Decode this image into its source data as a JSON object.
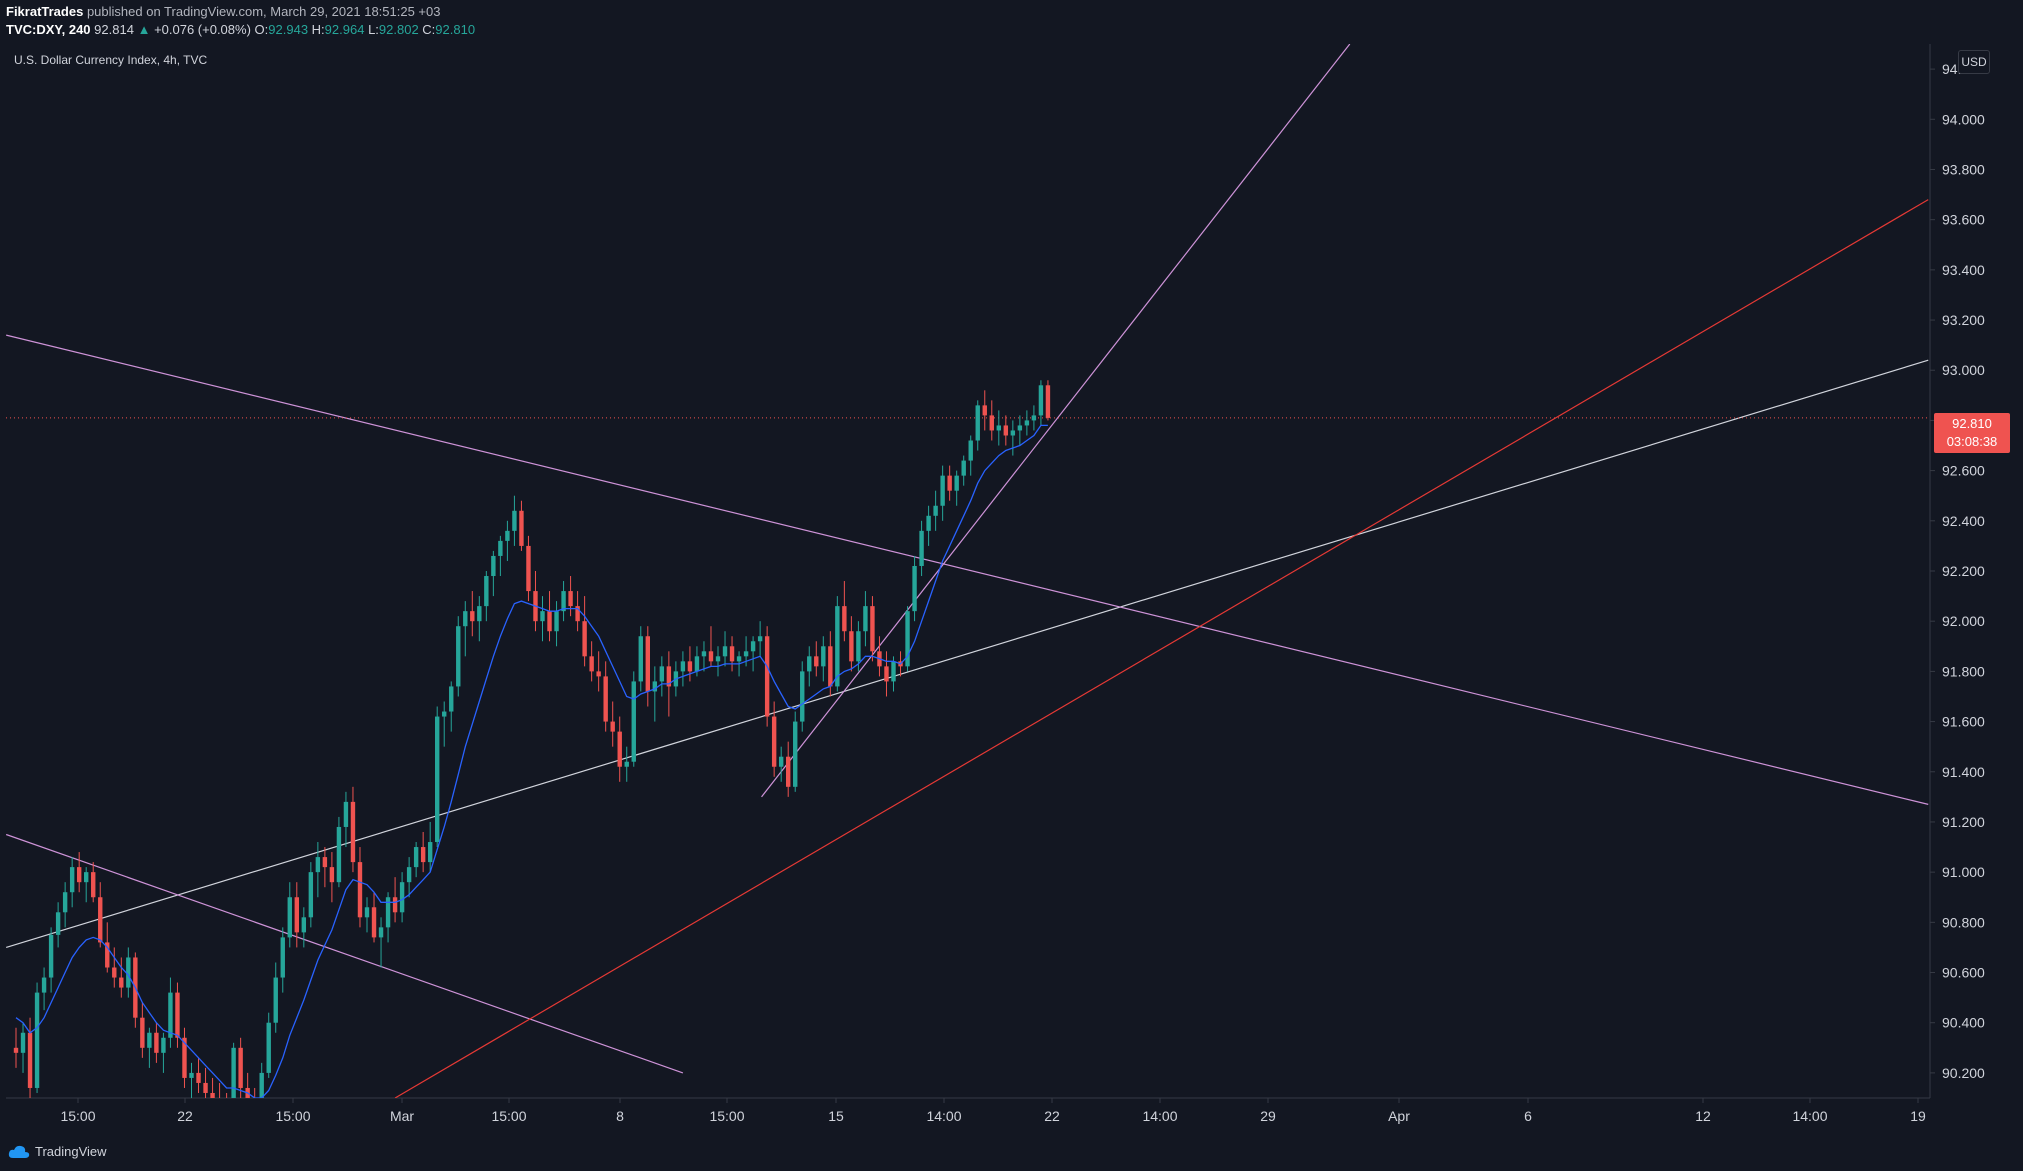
{
  "header": {
    "author": "FikratTrades",
    "published_text": "published on TradingView.com, March 29, 2021 18:51:25 +03",
    "symbol": "TVC:DXY, 240",
    "last": "92.814",
    "change_arrow": "▲",
    "change": "+0.076 (+0.08%)",
    "o_label": "O:",
    "o_value": "92.943",
    "h_label": "H:",
    "h_value": "92.964",
    "l_label": "L:",
    "l_value": "92.802",
    "c_label": "C:",
    "c_value": "92.810"
  },
  "chart_title": "U.S. Dollar Currency Index, 4h, TVC",
  "currency": "USD",
  "price_label": {
    "price": "92.810",
    "countdown": "03:08:38"
  },
  "footer": {
    "brand": "TradingView"
  },
  "colors": {
    "background": "#131722",
    "up": "#26a69a",
    "down": "#ef5350",
    "ma": "#2962ff",
    "trend_purple": "#ce93d8",
    "trend_red": "#e53935",
    "trend_white": "#d1d4dc"
  },
  "chart_data": {
    "type": "candlestick",
    "title": "U.S. Dollar Currency Index, 4h, TVC",
    "ylim": [
      90.1,
      94.3
    ],
    "y_ticks": [
      "90.200",
      "90.400",
      "90.600",
      "90.800",
      "91.000",
      "91.200",
      "91.400",
      "91.600",
      "91.800",
      "92.000",
      "92.200",
      "92.400",
      "92.600",
      "92.800",
      "93.000",
      "93.200",
      "93.400",
      "93.600",
      "93.800",
      "94.000",
      "94.200"
    ],
    "x_ticks": [
      "15:00",
      "22",
      "15:00",
      "Mar",
      "15:00",
      "8",
      "15:00",
      "15",
      "14:00",
      "22",
      "14:00",
      "29",
      "Apr",
      "6",
      "12",
      "14:00",
      "19"
    ],
    "candles": [
      [
        90.3,
        90.38,
        90.22,
        90.28
      ],
      [
        90.28,
        90.4,
        90.2,
        90.36
      ],
      [
        90.36,
        90.42,
        90.1,
        90.14
      ],
      [
        90.14,
        90.56,
        90.12,
        90.52
      ],
      [
        90.52,
        90.62,
        90.45,
        90.58
      ],
      [
        90.58,
        90.78,
        90.52,
        90.75
      ],
      [
        90.75,
        90.88,
        90.7,
        90.84
      ],
      [
        90.84,
        90.96,
        90.78,
        90.92
      ],
      [
        90.92,
        91.06,
        90.86,
        91.02
      ],
      [
        91.02,
        91.08,
        90.92,
        90.96
      ],
      [
        90.96,
        91.02,
        90.88,
        91.0
      ],
      [
        91.0,
        91.04,
        90.88,
        90.9
      ],
      [
        90.9,
        90.96,
        90.7,
        90.72
      ],
      [
        90.72,
        90.8,
        90.6,
        90.62
      ],
      [
        90.62,
        90.7,
        90.54,
        90.58
      ],
      [
        90.58,
        90.66,
        90.5,
        90.54
      ],
      [
        90.54,
        90.7,
        90.5,
        90.66
      ],
      [
        90.66,
        90.68,
        90.38,
        90.42
      ],
      [
        90.42,
        90.48,
        90.26,
        90.3
      ],
      [
        90.3,
        90.38,
        90.22,
        90.36
      ],
      [
        90.36,
        90.4,
        90.24,
        90.28
      ],
      [
        90.28,
        90.36,
        90.2,
        90.34
      ],
      [
        90.34,
        90.58,
        90.3,
        90.52
      ],
      [
        90.52,
        90.56,
        90.3,
        90.34
      ],
      [
        90.34,
        90.38,
        90.14,
        90.18
      ],
      [
        90.18,
        90.24,
        90.08,
        90.2
      ],
      [
        90.2,
        90.26,
        90.12,
        90.16
      ],
      [
        90.16,
        90.22,
        90.08,
        90.12
      ],
      [
        90.12,
        90.18,
        90.04,
        90.1
      ],
      [
        90.1,
        90.16,
        90.02,
        90.06
      ],
      [
        90.06,
        90.12,
        89.98,
        90.04
      ],
      [
        90.04,
        90.32,
        90.0,
        90.3
      ],
      [
        90.3,
        90.34,
        90.1,
        90.14
      ],
      [
        90.14,
        90.2,
        90.04,
        90.08
      ],
      [
        90.08,
        90.14,
        89.98,
        90.02
      ],
      [
        90.02,
        90.24,
        90.0,
        90.2
      ],
      [
        90.2,
        90.44,
        90.18,
        90.4
      ],
      [
        90.4,
        90.64,
        90.36,
        90.58
      ],
      [
        90.58,
        90.78,
        90.52,
        90.74
      ],
      [
        90.74,
        90.96,
        90.7,
        90.9
      ],
      [
        90.9,
        90.96,
        90.7,
        90.76
      ],
      [
        90.76,
        90.86,
        90.7,
        90.82
      ],
      [
        90.82,
        91.04,
        90.78,
        91.0
      ],
      [
        91.0,
        91.12,
        90.9,
        91.06
      ],
      [
        91.06,
        91.1,
        90.94,
        91.02
      ],
      [
        91.02,
        91.08,
        90.88,
        90.96
      ],
      [
        90.96,
        91.22,
        90.94,
        91.18
      ],
      [
        91.18,
        91.32,
        91.1,
        91.28
      ],
      [
        91.28,
        91.34,
        91.0,
        91.04
      ],
      [
        91.04,
        91.1,
        90.78,
        90.82
      ],
      [
        90.82,
        90.9,
        90.76,
        90.86
      ],
      [
        90.86,
        90.92,
        90.72,
        90.74
      ],
      [
        90.74,
        90.82,
        90.62,
        90.78
      ],
      [
        90.78,
        90.92,
        90.72,
        90.9
      ],
      [
        90.9,
        90.98,
        90.8,
        90.84
      ],
      [
        90.84,
        91.0,
        90.8,
        90.96
      ],
      [
        90.96,
        91.06,
        90.9,
        91.02
      ],
      [
        91.02,
        91.12,
        90.98,
        91.1
      ],
      [
        91.1,
        91.16,
        91.0,
        91.04
      ],
      [
        91.04,
        91.2,
        91.0,
        91.12
      ],
      [
        91.12,
        91.66,
        91.1,
        91.62
      ],
      [
        91.62,
        91.68,
        91.5,
        91.64
      ],
      [
        91.64,
        91.76,
        91.56,
        91.74
      ],
      [
        91.74,
        92.02,
        91.7,
        91.98
      ],
      [
        91.98,
        92.08,
        91.86,
        92.04
      ],
      [
        92.04,
        92.12,
        91.94,
        92.0
      ],
      [
        92.0,
        92.1,
        91.92,
        92.06
      ],
      [
        92.06,
        92.2,
        92.0,
        92.18
      ],
      [
        92.18,
        92.28,
        92.1,
        92.26
      ],
      [
        92.26,
        92.34,
        92.18,
        92.32
      ],
      [
        92.32,
        92.4,
        92.24,
        92.36
      ],
      [
        92.36,
        92.5,
        92.3,
        92.44
      ],
      [
        92.44,
        92.48,
        92.28,
        92.3
      ],
      [
        92.3,
        92.34,
        92.08,
        92.12
      ],
      [
        92.12,
        92.2,
        91.96,
        92.0
      ],
      [
        92.0,
        92.1,
        91.92,
        92.04
      ],
      [
        92.04,
        92.12,
        91.92,
        91.96
      ],
      [
        91.96,
        92.08,
        91.9,
        92.04
      ],
      [
        92.04,
        92.16,
        92.0,
        92.12
      ],
      [
        92.12,
        92.18,
        92.02,
        92.06
      ],
      [
        92.06,
        92.12,
        91.96,
        92.0
      ],
      [
        92.0,
        92.1,
        91.82,
        91.86
      ],
      [
        91.86,
        91.92,
        91.76,
        91.8
      ],
      [
        91.8,
        91.88,
        91.72,
        91.78
      ],
      [
        91.78,
        91.84,
        91.56,
        91.6
      ],
      [
        91.6,
        91.68,
        91.5,
        91.56
      ],
      [
        91.56,
        91.62,
        91.36,
        91.42
      ],
      [
        91.42,
        91.5,
        91.36,
        91.44
      ],
      [
        91.44,
        91.8,
        91.42,
        91.76
      ],
      [
        91.76,
        91.98,
        91.72,
        91.94
      ],
      [
        91.94,
        91.98,
        91.66,
        91.72
      ],
      [
        91.72,
        91.82,
        91.6,
        91.76
      ],
      [
        91.76,
        91.86,
        91.7,
        91.82
      ],
      [
        91.82,
        91.88,
        91.62,
        91.74
      ],
      [
        91.74,
        91.84,
        91.7,
        91.8
      ],
      [
        91.8,
        91.88,
        91.74,
        91.84
      ],
      [
        91.84,
        91.9,
        91.76,
        91.8
      ],
      [
        91.8,
        91.9,
        91.78,
        91.86
      ],
      [
        91.86,
        91.92,
        91.8,
        91.88
      ],
      [
        91.88,
        91.98,
        91.82,
        91.84
      ],
      [
        91.84,
        91.9,
        91.78,
        91.86
      ],
      [
        91.86,
        91.96,
        91.82,
        91.9
      ],
      [
        91.9,
        91.94,
        91.8,
        91.84
      ],
      [
        91.84,
        91.88,
        91.78,
        91.86
      ],
      [
        91.86,
        91.94,
        91.82,
        91.88
      ],
      [
        91.88,
        91.94,
        91.8,
        91.92
      ],
      [
        91.92,
        92.0,
        91.86,
        91.94
      ],
      [
        91.94,
        91.98,
        91.58,
        91.62
      ],
      [
        91.62,
        91.68,
        91.38,
        91.42
      ],
      [
        91.42,
        91.5,
        91.36,
        91.46
      ],
      [
        91.46,
        91.52,
        91.3,
        91.34
      ],
      [
        91.34,
        91.64,
        91.32,
        91.6
      ],
      [
        91.6,
        91.84,
        91.56,
        91.8
      ],
      [
        91.8,
        91.9,
        91.74,
        91.86
      ],
      [
        91.86,
        91.92,
        91.78,
        91.82
      ],
      [
        91.82,
        91.94,
        91.76,
        91.9
      ],
      [
        91.9,
        91.96,
        91.7,
        91.74
      ],
      [
        91.74,
        92.1,
        91.72,
        92.06
      ],
      [
        92.06,
        92.16,
        91.92,
        91.96
      ],
      [
        91.96,
        92.02,
        91.8,
        91.84
      ],
      [
        91.84,
        92.0,
        91.8,
        91.96
      ],
      [
        91.96,
        92.12,
        91.9,
        92.06
      ],
      [
        92.06,
        92.1,
        91.84,
        91.88
      ],
      [
        91.88,
        91.94,
        91.78,
        91.82
      ],
      [
        91.82,
        91.88,
        91.7,
        91.76
      ],
      [
        91.76,
        91.86,
        91.72,
        91.84
      ],
      [
        91.84,
        91.88,
        91.78,
        91.82
      ],
      [
        91.82,
        92.06,
        91.8,
        92.04
      ],
      [
        92.04,
        92.26,
        92.0,
        92.22
      ],
      [
        92.22,
        92.4,
        92.18,
        92.36
      ],
      [
        92.36,
        92.46,
        92.3,
        92.42
      ],
      [
        92.42,
        92.52,
        92.36,
        92.46
      ],
      [
        92.46,
        92.62,
        92.4,
        92.58
      ],
      [
        92.58,
        92.62,
        92.48,
        92.52
      ],
      [
        92.52,
        92.6,
        92.46,
        92.58
      ],
      [
        92.58,
        92.66,
        92.54,
        92.64
      ],
      [
        92.64,
        92.74,
        92.58,
        92.72
      ],
      [
        92.72,
        92.88,
        92.68,
        92.86
      ],
      [
        92.86,
        92.92,
        92.76,
        92.82
      ],
      [
        92.82,
        92.88,
        92.72,
        92.76
      ],
      [
        92.76,
        92.84,
        92.7,
        92.78
      ],
      [
        92.78,
        92.82,
        92.7,
        92.74
      ],
      [
        92.74,
        92.8,
        92.66,
        92.76
      ],
      [
        92.76,
        92.82,
        92.7,
        92.78
      ],
      [
        92.78,
        92.84,
        92.74,
        92.8
      ],
      [
        92.8,
        92.86,
        92.76,
        92.82
      ],
      [
        92.82,
        92.96,
        92.78,
        92.94
      ],
      [
        92.94,
        92.96,
        92.8,
        92.81
      ]
    ],
    "ma": [
      90.42,
      90.4,
      90.36,
      90.38,
      90.42,
      90.48,
      90.54,
      90.6,
      90.66,
      90.7,
      90.73,
      90.74,
      90.73,
      90.7,
      90.66,
      90.62,
      90.59,
      90.54,
      90.48,
      90.44,
      90.4,
      90.37,
      90.36,
      90.35,
      90.32,
      90.29,
      90.26,
      90.23,
      90.2,
      90.17,
      90.14,
      90.14,
      90.13,
      90.12,
      90.1,
      90.1,
      90.13,
      90.19,
      90.26,
      90.35,
      90.42,
      90.49,
      90.57,
      90.65,
      90.71,
      90.77,
      90.85,
      90.93,
      90.97,
      90.96,
      90.95,
      90.92,
      90.88,
      90.88,
      90.88,
      90.89,
      90.91,
      90.94,
      90.97,
      91.0,
      91.09,
      91.18,
      91.28,
      91.39,
      91.5,
      91.59,
      91.68,
      91.77,
      91.86,
      91.94,
      92.01,
      92.07,
      92.08,
      92.07,
      92.06,
      92.05,
      92.04,
      92.04,
      92.05,
      92.05,
      92.05,
      92.02,
      91.98,
      91.94,
      91.88,
      91.82,
      91.76,
      91.7,
      91.69,
      91.71,
      91.72,
      91.73,
      91.75,
      91.75,
      91.77,
      91.78,
      91.79,
      91.8,
      91.81,
      91.82,
      91.82,
      91.83,
      91.83,
      91.83,
      91.84,
      91.85,
      91.86,
      91.82,
      91.76,
      91.71,
      91.66,
      91.65,
      91.67,
      91.69,
      91.71,
      91.73,
      91.74,
      91.78,
      91.8,
      91.81,
      91.83,
      91.86,
      91.86,
      91.85,
      91.84,
      91.84,
      91.83,
      91.86,
      91.92,
      92.0,
      92.08,
      92.16,
      92.24,
      92.3,
      92.36,
      92.42,
      92.48,
      92.55,
      92.6,
      92.63,
      92.66,
      92.68,
      92.69,
      92.7,
      92.72,
      92.74,
      92.78,
      92.78
    ]
  }
}
